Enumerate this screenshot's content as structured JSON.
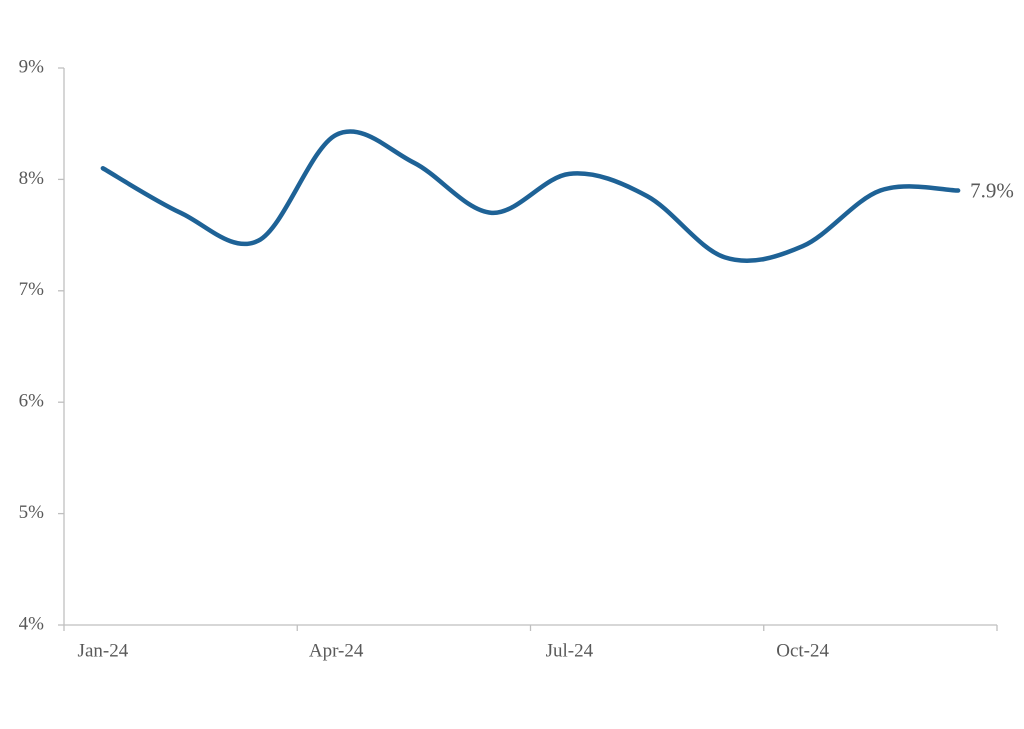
{
  "chart_data": {
    "type": "line",
    "categories": [
      "Jan-24",
      null,
      null,
      "Apr-24",
      null,
      null,
      "Jul-24",
      null,
      null,
      "Oct-24",
      null,
      null
    ],
    "values": [
      8.1,
      7.7,
      7.45,
      8.4,
      8.15,
      7.7,
      8.05,
      7.85,
      7.3,
      7.4,
      7.9,
      7.9
    ],
    "value_labels": [
      null,
      null,
      null,
      null,
      null,
      null,
      null,
      null,
      null,
      null,
      null,
      "7.9%"
    ],
    "color": "#1e6296",
    "ylim": [
      4,
      9
    ],
    "yticks": [
      {
        "value": 4,
        "label": "4%"
      },
      {
        "value": 5,
        "label": "5%"
      },
      {
        "value": 6,
        "label": "6%"
      },
      {
        "value": 7,
        "label": "7%"
      },
      {
        "value": 8,
        "label": "8%"
      },
      {
        "value": 9,
        "label": "9%"
      }
    ],
    "grid": false
  }
}
